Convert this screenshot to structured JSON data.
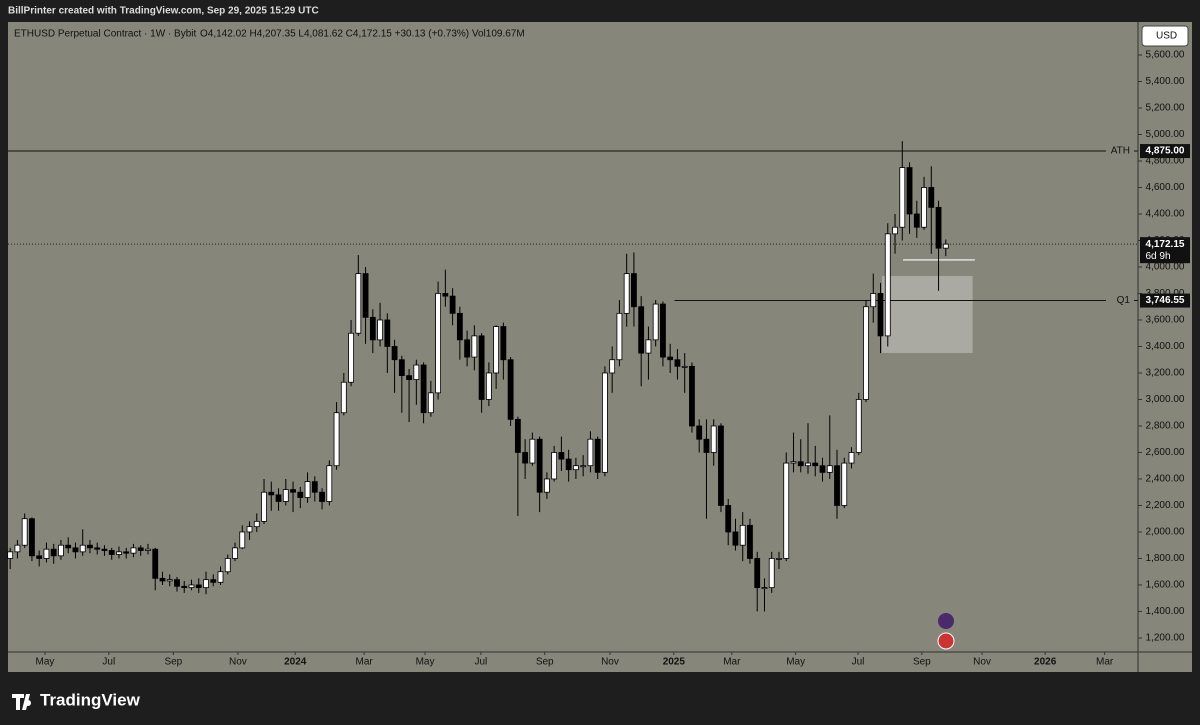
{
  "chart_data": {
    "type": "candlestick",
    "title": "BillPrinter created with TradingView.com, Sep 29, 2025 15:29 UTC",
    "symbol": "ETHUSD Perpetual Contract · 1W · Bybit",
    "ohlc_text": "O4,142.02 H4,207.35 L4,081.62 C4,172.15 +30.13 (+0.73%) Vol109.67M",
    "currency": "USD",
    "brand": "TradingView",
    "colors": {
      "up": "#ffffff",
      "down": "#000000",
      "wick": "#000000",
      "background": "#86867b"
    },
    "series": {
      "open": [
        1800,
        1850,
        1900,
        2100,
        1820,
        1800,
        1870,
        1820,
        1900,
        1880,
        1850,
        1900,
        1880,
        1870,
        1860,
        1830,
        1850,
        1840,
        1880,
        1860,
        1870,
        1650,
        1630,
        1640,
        1590,
        1580,
        1600,
        1580,
        1640,
        1620,
        1700,
        1800,
        1880,
        2000,
        2040,
        2080,
        2300,
        2280,
        2230,
        2320,
        2300,
        2260,
        2380,
        2300,
        2230,
        2500,
        2900,
        3130,
        3500,
        3950,
        3620,
        3450,
        3600,
        3400,
        3300,
        3180,
        3150,
        3260,
        2900,
        3050,
        3800,
        3780,
        3650,
        3450,
        3320,
        3480,
        3000,
        3200,
        3550,
        3300,
        2850,
        2600,
        2520,
        2700,
        2300,
        2400,
        2600,
        2550,
        2470,
        2500,
        2500,
        2700,
        2450,
        3200,
        3300,
        3650,
        3950,
        3700,
        3350,
        3450,
        3720,
        3320,
        3300,
        3250,
        3250,
        2800,
        2700,
        2600,
        2800,
        2200,
        2000,
        1900,
        2050,
        1800,
        1580,
        1580,
        1800,
        1800,
        2520,
        2530,
        2500,
        2520,
        2500,
        2450,
        2500,
        2200,
        2520,
        2600,
        3000,
        3700,
        3800,
        3480,
        4250,
        4300,
        4750,
        4400,
        4300,
        4600,
        4450,
        4142.02
      ],
      "high": [
        1880,
        1940,
        2140,
        2110,
        1860,
        1920,
        1910,
        1940,
        1960,
        1920,
        2020,
        1940,
        1920,
        1900,
        1880,
        1890,
        1880,
        1910,
        1900,
        1910,
        1880,
        1700,
        1680,
        1660,
        1630,
        1640,
        1650,
        1700,
        1680,
        1740,
        1830,
        1920,
        2050,
        2080,
        2140,
        2400,
        2380,
        2330,
        2400,
        2380,
        2340,
        2450,
        2420,
        2330,
        2540,
        2980,
        3200,
        3600,
        4090,
        4000,
        3680,
        3730,
        3650,
        3450,
        3330,
        3230,
        3300,
        3280,
        3140,
        3890,
        3980,
        3840,
        3700,
        3520,
        3560,
        3500,
        3280,
        3560,
        3580,
        3320,
        2870,
        2700,
        2750,
        2720,
        2450,
        2650,
        2720,
        2620,
        2560,
        2580,
        2760,
        2720,
        3250,
        3400,
        3750,
        4100,
        4110,
        3780,
        3550,
        3750,
        3740,
        3420,
        3380,
        3350,
        3280,
        2850,
        2850,
        2850,
        2820,
        2250,
        2100,
        2150,
        2100,
        1850,
        1650,
        1850,
        1850,
        2600,
        2750,
        2700,
        2820,
        2650,
        2560,
        2880,
        2620,
        2560,
        2640,
        3050,
        3750,
        3950,
        3880,
        4330,
        4400,
        4950,
        4790,
        4500,
        4680,
        4760,
        4500,
        4207.35
      ],
      "low": [
        1720,
        1800,
        1880,
        1780,
        1740,
        1770,
        1760,
        1790,
        1840,
        1800,
        1820,
        1840,
        1830,
        1820,
        1790,
        1800,
        1800,
        1810,
        1820,
        1830,
        1560,
        1600,
        1590,
        1550,
        1540,
        1560,
        1540,
        1530,
        1590,
        1600,
        1680,
        1780,
        1870,
        1940,
        2000,
        2060,
        2160,
        2160,
        2200,
        2150,
        2180,
        2220,
        2230,
        2170,
        2200,
        2470,
        2880,
        3100,
        3480,
        3420,
        3350,
        3400,
        3200,
        3050,
        2900,
        2830,
        2960,
        2820,
        2870,
        3000,
        3700,
        3560,
        3300,
        3250,
        3220,
        2900,
        2950,
        3080,
        3150,
        2800,
        2120,
        2400,
        2500,
        2150,
        2250,
        2380,
        2460,
        2380,
        2400,
        2420,
        2450,
        2400,
        2420,
        3050,
        3250,
        3550,
        3550,
        3100,
        3150,
        3400,
        3250,
        3200,
        3150,
        3050,
        2750,
        2600,
        2100,
        2500,
        2150,
        1900,
        1860,
        1780,
        1760,
        1400,
        1400,
        1540,
        1720,
        1780,
        2450,
        2450,
        2440,
        2420,
        2380,
        2400,
        2100,
        2180,
        2480,
        2580,
        2980,
        3580,
        3350,
        3400,
        4100,
        4200,
        4250,
        4220,
        4280,
        4100,
        3820,
        4081.62
      ],
      "close": [
        1850,
        1900,
        2100,
        1820,
        1800,
        1870,
        1820,
        1900,
        1880,
        1850,
        1900,
        1880,
        1870,
        1860,
        1830,
        1850,
        1840,
        1880,
        1860,
        1870,
        1650,
        1630,
        1640,
        1590,
        1580,
        1600,
        1580,
        1640,
        1620,
        1700,
        1800,
        1880,
        2000,
        2040,
        2080,
        2300,
        2280,
        2230,
        2320,
        2300,
        2260,
        2380,
        2300,
        2230,
        2500,
        2900,
        3130,
        3500,
        3950,
        3620,
        3450,
        3600,
        3400,
        3300,
        3180,
        3150,
        3260,
        2900,
        3050,
        3800,
        3780,
        3650,
        3450,
        3320,
        3480,
        3000,
        3200,
        3550,
        3300,
        2850,
        2600,
        2520,
        2700,
        2300,
        2400,
        2600,
        2550,
        2470,
        2500,
        2500,
        2700,
        2450,
        3200,
        3300,
        3650,
        3950,
        3700,
        3350,
        3450,
        3720,
        3320,
        3300,
        3250,
        3250,
        2800,
        2700,
        2600,
        2800,
        2200,
        2000,
        1900,
        2050,
        1800,
        1580,
        1580,
        1800,
        1800,
        2520,
        2530,
        2500,
        2520,
        2500,
        2450,
        2500,
        2200,
        2520,
        2600,
        3000,
        3700,
        3800,
        3480,
        4250,
        4300,
        4750,
        4400,
        4300,
        4600,
        4450,
        4142.02,
        4172.15
      ]
    },
    "xlim": [
      -0.3,
      155.5
    ],
    "xticks": [
      {
        "value": 4.8,
        "label": "May"
      },
      {
        "value": 13.6,
        "label": "Jul"
      },
      {
        "value": 22.5,
        "label": "Sep"
      },
      {
        "value": 31.4,
        "label": "Nov"
      },
      {
        "value": 39.3,
        "label": "2024"
      },
      {
        "value": 48.8,
        "label": "Mar"
      },
      {
        "value": 57.2,
        "label": "May"
      },
      {
        "value": 64.9,
        "label": "Jul"
      },
      {
        "value": 73.7,
        "label": "Sep"
      },
      {
        "value": 82.7,
        "label": "Nov"
      },
      {
        "value": 91.5,
        "label": "2025"
      },
      {
        "value": 99.5,
        "label": "Mar"
      },
      {
        "value": 108.3,
        "label": "May"
      },
      {
        "value": 116.9,
        "label": "Jul"
      },
      {
        "value": 125.7,
        "label": "Sep"
      },
      {
        "value": 134.0,
        "label": "Nov"
      },
      {
        "value": 142.7,
        "label": "2026"
      },
      {
        "value": 150.9,
        "label": "Mar"
      }
    ],
    "ylim": [
      1094,
      5849
    ],
    "yticks": [
      {
        "value": 1200,
        "label": "1,200.00"
      },
      {
        "value": 1400,
        "label": "1,400.00"
      },
      {
        "value": 1600,
        "label": "1,600.00"
      },
      {
        "value": 1800,
        "label": "1,800.00"
      },
      {
        "value": 2000,
        "label": "2,000.00"
      },
      {
        "value": 2200,
        "label": "2,200.00"
      },
      {
        "value": 2400,
        "label": "2,400.00"
      },
      {
        "value": 2600,
        "label": "2,600.00"
      },
      {
        "value": 2800,
        "label": "2,800.00"
      },
      {
        "value": 3000,
        "label": "3,000.00"
      },
      {
        "value": 3200,
        "label": "3,200.00"
      },
      {
        "value": 3400,
        "label": "3,400.00"
      },
      {
        "value": 3600,
        "label": "3,600.00"
      },
      {
        "value": 3800,
        "label": "3,800.00"
      },
      {
        "value": 4000,
        "label": "4,000.00"
      },
      {
        "value": 4200,
        "label": "4,200.00"
      },
      {
        "value": 4400,
        "label": "4,400.00"
      },
      {
        "value": 4600,
        "label": "4,600.00"
      },
      {
        "value": 4800,
        "label": "4,800.00"
      },
      {
        "value": 5000,
        "label": "5,000.00"
      },
      {
        "value": 5200,
        "label": "5,200.00"
      },
      {
        "value": 5400,
        "label": "5,400.00"
      },
      {
        "value": 5600,
        "label": "5,600.00"
      }
    ],
    "levels": [
      {
        "name": "ATH",
        "value": 4875,
        "label": "4,875.00",
        "x_start": -0.3
      },
      {
        "name": "Q1",
        "value": 3746.55,
        "label": "3,746.55",
        "x_start": 91.6
      }
    ],
    "zone": {
      "x": [
        120.2,
        132.7
      ],
      "y": [
        3351,
        3932
      ]
    },
    "support": {
      "x": [
        123.1,
        133.0
      ],
      "value": 4053
    },
    "last_price": {
      "value": 4172.15,
      "label": "4,172.15",
      "countdown": "6d 9h"
    }
  }
}
